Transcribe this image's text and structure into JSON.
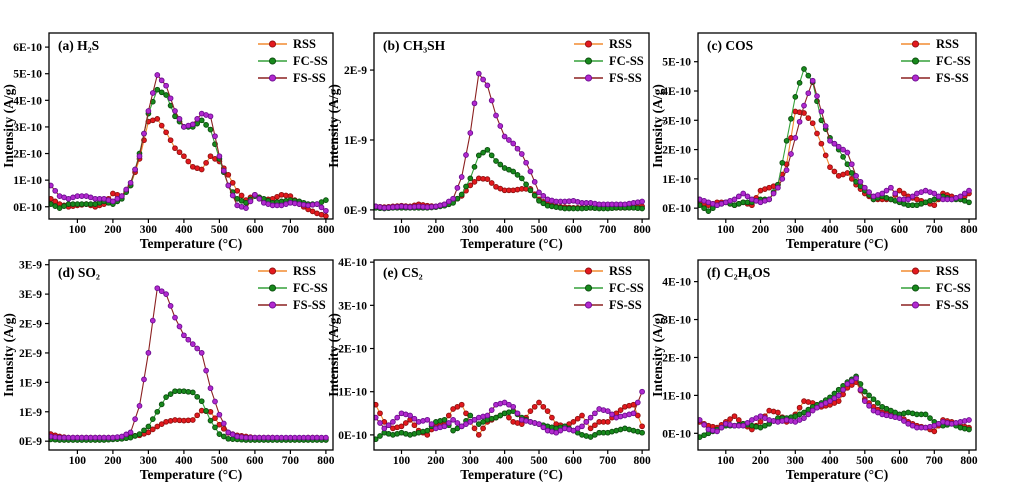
{
  "figure": {
    "background": "#ffffff"
  },
  "shared": {
    "xlabel": "Temperature (°C)",
    "ylabel": "Intensity (A/g)",
    "xlim": [
      20,
      820
    ],
    "x_ticks": [
      100,
      200,
      300,
      400,
      500,
      600,
      700,
      800
    ],
    "x": [
      25,
      50,
      75,
      100,
      125,
      150,
      175,
      200,
      225,
      250,
      275,
      300,
      325,
      350,
      375,
      400,
      425,
      450,
      475,
      500,
      525,
      550,
      575,
      600,
      625,
      650,
      675,
      700,
      725,
      750,
      775,
      800
    ],
    "legend": [
      "RSS",
      "FC-SS",
      "FS-SS"
    ],
    "legend_position": "top-right",
    "grid": false,
    "series_styles": {
      "RSS": {
        "line": "#f28b30",
        "marker": "#e3191e",
        "edge": "#901010"
      },
      "FC-SS": {
        "line": "#35a13a",
        "marker": "#17891c",
        "edge": "#0b4b0e"
      },
      "FS-SS": {
        "line": "#8b2020",
        "marker": "#b229cf",
        "edge": "#6b0d8f"
      }
    }
  },
  "chart_data": [
    {
      "id": "a",
      "type": "line",
      "title": "(a) H₂S",
      "y_unit": "×1E-10 A/g",
      "ylim": [
        -0.46,
        6.53
      ],
      "y_ticks": [
        0,
        1,
        2,
        3,
        4,
        5,
        6
      ],
      "y_tick_labels": [
        "0E-10",
        "1E-10",
        "2E-10",
        "3E-10",
        "4E-10",
        "5E-10",
        "6E-10"
      ],
      "series": [
        {
          "name": "RSS",
          "values": [
            0.3,
            0.1,
            0.0,
            0.05,
            0.1,
            0.0,
            0.1,
            0.5,
            0.4,
            0.8,
            1.8,
            3.2,
            3.3,
            2.8,
            2.2,
            1.9,
            1.5,
            1.4,
            1.9,
            1.7,
            1.2,
            0.6,
            0.25,
            0.45,
            0.25,
            0.3,
            0.45,
            0.4,
            0.1,
            -0.1,
            -0.25,
            -0.35
          ]
        },
        {
          "name": "FC-SS",
          "values": [
            0.1,
            -0.05,
            0.1,
            0.1,
            0.1,
            0.1,
            0.2,
            0.1,
            0.3,
            0.8,
            2.0,
            3.5,
            4.4,
            4.2,
            3.4,
            3.0,
            3.0,
            3.25,
            2.9,
            1.8,
            0.8,
            0.3,
            0.15,
            0.4,
            0.3,
            0.15,
            0.2,
            0.25,
            0.2,
            0.1,
            0.1,
            0.25
          ]
        },
        {
          "name": "FS-SS",
          "values": [
            0.8,
            0.4,
            0.3,
            0.4,
            0.4,
            0.3,
            0.3,
            0.2,
            0.4,
            0.9,
            1.9,
            3.6,
            4.95,
            4.55,
            3.6,
            3.0,
            3.1,
            3.5,
            3.4,
            1.9,
            0.8,
            0.05,
            -0.05,
            0.45,
            0.15,
            0.05,
            0.05,
            0.15,
            0.1,
            0.05,
            0.1,
            -0.15
          ]
        }
      ]
    },
    {
      "id": "b",
      "type": "line",
      "title": "(b) CH₃SH",
      "y_unit": "×1E-9 A/g",
      "ylim": [
        -0.13,
        2.53
      ],
      "y_ticks": [
        0,
        1,
        2
      ],
      "y_tick_labels": [
        "0E-9",
        "1E-9",
        "2E-9"
      ],
      "series": [
        {
          "name": "RSS",
          "values": [
            0.05,
            0.04,
            0.05,
            0.06,
            0.05,
            0.08,
            0.06,
            0.05,
            0.08,
            0.12,
            0.2,
            0.35,
            0.45,
            0.44,
            0.33,
            0.28,
            0.28,
            0.3,
            0.3,
            0.15,
            0.08,
            0.05,
            0.04,
            0.03,
            0.03,
            0.03,
            0.03,
            0.03,
            0.03,
            0.03,
            0.04,
            0.05
          ]
        },
        {
          "name": "FC-SS",
          "values": [
            0.03,
            0.02,
            0.03,
            0.03,
            0.03,
            0.03,
            0.03,
            0.04,
            0.06,
            0.1,
            0.22,
            0.45,
            0.78,
            0.86,
            0.7,
            0.6,
            0.55,
            0.45,
            0.28,
            0.13,
            0.06,
            0.04,
            0.02,
            0.02,
            0.02,
            0.03,
            0.02,
            0.02,
            0.03,
            0.03,
            0.03,
            0.02
          ]
        },
        {
          "name": "FS-SS",
          "values": [
            0.05,
            0.03,
            0.04,
            0.05,
            0.04,
            0.05,
            0.04,
            0.05,
            0.08,
            0.16,
            0.47,
            1.1,
            1.95,
            1.78,
            1.35,
            1.05,
            0.95,
            0.8,
            0.55,
            0.25,
            0.15,
            0.12,
            0.12,
            0.13,
            0.1,
            0.1,
            0.08,
            0.08,
            0.08,
            0.08,
            0.1,
            0.12
          ]
        }
      ]
    },
    {
      "id": "c",
      "type": "line",
      "title": "(c) COS",
      "y_unit": "×1E-10 A/g",
      "ylim": [
        -0.37,
        5.98
      ],
      "y_ticks": [
        0,
        1,
        2,
        3,
        4,
        5
      ],
      "y_tick_labels": [
        "0E-10",
        "1E-10",
        "2E-10",
        "3E-10",
        "4E-10",
        "5E-10"
      ],
      "series": [
        {
          "name": "RSS",
          "values": [
            0.2,
            0.1,
            0.2,
            0.2,
            0.1,
            0.2,
            0.1,
            0.6,
            0.7,
            0.8,
            1.5,
            3.3,
            3.25,
            2.9,
            2.2,
            1.4,
            1.1,
            1.2,
            0.8,
            0.5,
            0.3,
            0.3,
            0.3,
            0.6,
            0.4,
            0.3,
            0.2,
            0.1,
            0.5,
            0.4,
            0.3,
            0.5
          ]
        },
        {
          "name": "FC-SS",
          "values": [
            0.1,
            -0.1,
            0.1,
            0.2,
            0.1,
            0.2,
            0.2,
            0.3,
            0.3,
            0.8,
            2.3,
            3.8,
            4.75,
            4.3,
            3.0,
            2.4,
            2.0,
            1.5,
            0.9,
            0.6,
            0.3,
            0.4,
            0.3,
            0.2,
            0.1,
            0.1,
            0.2,
            0.3,
            0.4,
            0.3,
            0.3,
            0.2
          ]
        },
        {
          "name": "FS-SS",
          "values": [
            0.3,
            0.2,
            0.1,
            0.2,
            0.3,
            0.5,
            0.3,
            0.2,
            0.3,
            0.7,
            1.3,
            2.4,
            3.5,
            4.35,
            3.3,
            2.3,
            2.1,
            1.9,
            1.1,
            0.7,
            0.4,
            0.5,
            0.7,
            0.3,
            0.3,
            0.5,
            0.6,
            0.5,
            0.3,
            0.3,
            0.4,
            0.6
          ]
        }
      ]
    },
    {
      "id": "d",
      "type": "line",
      "title": "(d) SO₂",
      "y_unit": "×1E-9 A/g",
      "ylim": [
        -0.15,
        3.08
      ],
      "y_ticks": [
        0,
        0.5,
        1,
        1.5,
        2,
        2.5,
        3
      ],
      "y_tick_labels": [
        "0E-9",
        "1E-9",
        "1E-9",
        "2E-9",
        "2E-9",
        "3E-9",
        "3E-9"
      ],
      "series": [
        {
          "name": "RSS",
          "values": [
            0.12,
            0.08,
            0.06,
            0.06,
            0.06,
            0.06,
            0.06,
            0.06,
            0.06,
            0.08,
            0.1,
            0.15,
            0.25,
            0.33,
            0.36,
            0.35,
            0.36,
            0.52,
            0.5,
            0.28,
            0.14,
            0.1,
            0.08,
            0.06,
            0.06,
            0.06,
            0.05,
            0.05,
            0.05,
            0.06,
            0.06,
            0.05
          ]
        },
        {
          "name": "FC-SS",
          "values": [
            0.03,
            0.02,
            0.02,
            0.02,
            0.02,
            0.02,
            0.02,
            0.03,
            0.04,
            0.06,
            0.12,
            0.25,
            0.5,
            0.75,
            0.85,
            0.85,
            0.83,
            0.68,
            0.35,
            0.12,
            0.04,
            0.03,
            0.02,
            0.02,
            0.02,
            0.02,
            0.02,
            0.02,
            0.02,
            0.02,
            0.02,
            0.02
          ]
        },
        {
          "name": "FS-SS",
          "values": [
            0.08,
            0.06,
            0.06,
            0.06,
            0.06,
            0.06,
            0.06,
            0.06,
            0.08,
            0.15,
            0.6,
            1.5,
            2.6,
            2.5,
            2.1,
            1.8,
            1.65,
            1.5,
            0.9,
            0.45,
            0.15,
            0.08,
            0.06,
            0.06,
            0.06,
            0.06,
            0.06,
            0.06,
            0.06,
            0.06,
            0.06,
            0.06
          ]
        }
      ]
    },
    {
      "id": "e",
      "type": "line",
      "title": "(e) CS₂",
      "y_unit": "×1E-10 A/g",
      "ylim": [
        -0.35,
        4.05
      ],
      "y_ticks": [
        0,
        1,
        2,
        3,
        4
      ],
      "y_tick_labels": [
        "0E-10",
        "1E-10",
        "2E-10",
        "3E-10",
        "4E-10"
      ],
      "series": [
        {
          "name": "RSS",
          "values": [
            0.7,
            0.3,
            0.15,
            0.2,
            0.35,
            0.1,
            0.0,
            0.25,
            0.3,
            0.6,
            0.7,
            0.3,
            0.0,
            0.3,
            0.4,
            0.5,
            0.3,
            0.25,
            0.55,
            0.75,
            0.55,
            0.25,
            0.2,
            0.3,
            0.45,
            0.15,
            0.3,
            0.3,
            0.5,
            0.65,
            0.7,
            0.2
          ]
        },
        {
          "name": "FC-SS",
          "values": [
            -0.1,
            0.05,
            0.0,
            0.05,
            0.0,
            0.05,
            0.1,
            0.3,
            0.35,
            0.1,
            0.2,
            0.45,
            0.25,
            0.35,
            0.4,
            0.5,
            0.55,
            0.4,
            0.3,
            0.25,
            0.2,
            0.15,
            0.2,
            0.1,
            0.0,
            -0.05,
            0.05,
            0.05,
            0.1,
            0.15,
            0.1,
            0.05
          ]
        },
        {
          "name": "FS-SS",
          "values": [
            0.4,
            0.15,
            0.3,
            0.5,
            0.45,
            0.3,
            0.35,
            0.15,
            0.2,
            0.35,
            0.2,
            0.3,
            0.4,
            0.45,
            0.7,
            0.75,
            0.65,
            0.35,
            0.3,
            0.25,
            0.1,
            0.05,
            0.15,
            0.1,
            0.2,
            0.4,
            0.6,
            0.55,
            0.4,
            0.45,
            0.5,
            1.0
          ]
        }
      ]
    },
    {
      "id": "f",
      "type": "line",
      "title": "(f) C₂H₆OS",
      "y_unit": "×1E-10 A/g",
      "ylim": [
        -0.44,
        4.57
      ],
      "y_ticks": [
        0,
        1,
        2,
        3,
        4
      ],
      "y_tick_labels": [
        "0E-10",
        "1E-10",
        "2E-10",
        "3E-10",
        "4E-10"
      ],
      "series": [
        {
          "name": "RSS",
          "values": [
            0.3,
            0.2,
            0.15,
            0.3,
            0.45,
            0.25,
            0.1,
            0.3,
            0.6,
            0.55,
            0.3,
            0.5,
            0.85,
            0.8,
            0.7,
            0.75,
            0.85,
            1.2,
            1.35,
            0.9,
            0.7,
            0.55,
            0.5,
            0.45,
            0.3,
            0.2,
            0.15,
            0.05,
            0.35,
            0.3,
            0.2,
            0.15
          ]
        },
        {
          "name": "FC-SS",
          "values": [
            -0.1,
            0.0,
            0.1,
            0.2,
            0.2,
            0.25,
            0.2,
            0.15,
            0.25,
            0.4,
            0.4,
            0.45,
            0.55,
            0.7,
            0.8,
            0.95,
            1.15,
            1.35,
            1.5,
            1.1,
            0.9,
            0.7,
            0.6,
            0.5,
            0.55,
            0.5,
            0.5,
            0.3,
            0.2,
            0.25,
            0.15,
            0.1
          ]
        },
        {
          "name": "FS-SS",
          "values": [
            0.35,
            0.1,
            0.05,
            0.25,
            0.2,
            0.2,
            0.35,
            0.45,
            0.35,
            0.3,
            0.35,
            0.3,
            0.4,
            0.6,
            0.75,
            0.85,
            1.0,
            1.3,
            1.45,
            0.85,
            0.6,
            0.5,
            0.45,
            0.4,
            0.25,
            0.15,
            0.15,
            0.2,
            0.3,
            0.25,
            0.3,
            0.35
          ]
        }
      ]
    }
  ]
}
